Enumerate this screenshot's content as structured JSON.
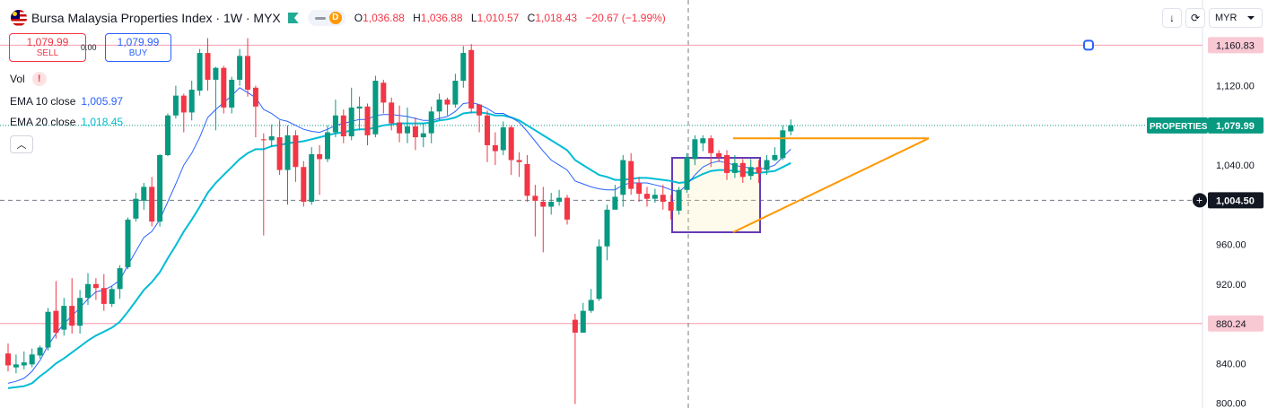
{
  "header": {
    "title": "Bursa Malaysia Properties Index · 1W · MYX",
    "ohlc": [
      {
        "k": "O",
        "v": "1,036.88"
      },
      {
        "k": "H",
        "v": "1,036.88"
      },
      {
        "k": "L",
        "v": "1,010.57"
      },
      {
        "k": "C",
        "v": "1,018.43"
      },
      {
        "k": "",
        "v": "−20.67 (−1.99%)"
      }
    ],
    "pill_letter": "D"
  },
  "trade": {
    "sell_price": "1,079.99",
    "sell_label": "SELL",
    "spread": "0.00",
    "buy_price": "1,079.99",
    "buy_label": "BUY"
  },
  "legend": {
    "vol": "Vol",
    "ema10_label": "EMA 10 close",
    "ema10_value": "1,005.97",
    "ema20_label": "EMA 20 close",
    "ema20_value": "1,018.45"
  },
  "toolbar": {
    "currency": "MYR"
  },
  "colors": {
    "up": "#089981",
    "down": "#f23645",
    "ema10": "#2962ff",
    "ema20": "#00bcd4",
    "pattern": "#ff9800",
    "box": "#673ab7",
    "level": "#f7a9b7"
  },
  "chart_data": {
    "type": "candlestick",
    "y_axis": {
      "range": [
        797,
        1180
      ],
      "ticks": [
        "1,120.00",
        "1,080.00",
        "1,040.00",
        "960.00",
        "920.00",
        "880.00",
        "840.00",
        "800.00"
      ]
    },
    "price_labels": {
      "upper_level": "1,160.83",
      "lower_level": "880.24",
      "symbol": "PROPERTIES",
      "last": "1,079.99",
      "crosshair": "1,004.50"
    },
    "levels": [
      1160.83,
      880.24
    ],
    "last_price": 1079.99,
    "crosshair_price": 1004.5,
    "candles": [
      [
        850,
        838,
        860,
        832
      ],
      [
        836,
        839,
        849,
        830
      ],
      [
        838,
        841,
        852,
        834
      ],
      [
        839,
        849,
        855,
        836
      ],
      [
        848,
        856,
        858,
        845
      ],
      [
        856,
        892,
        896,
        853
      ],
      [
        893,
        871,
        923,
        865
      ],
      [
        874,
        898,
        906,
        868
      ],
      [
        898,
        878,
        926,
        870
      ],
      [
        878,
        906,
        914,
        870
      ],
      [
        906,
        920,
        931,
        899
      ],
      [
        920,
        916,
        926,
        904
      ],
      [
        916,
        900,
        930,
        893
      ],
      [
        900,
        915,
        918,
        897
      ],
      [
        915,
        936,
        939,
        905
      ],
      [
        937,
        985,
        987,
        935
      ],
      [
        986,
        1006,
        1012,
        983
      ],
      [
        1004,
        1018,
        1022,
        995
      ],
      [
        1018,
        983,
        1028,
        978
      ],
      [
        983,
        1050,
        1051,
        978
      ],
      [
        1050,
        1090,
        1092,
        1049
      ],
      [
        1090,
        1110,
        1120,
        1087
      ],
      [
        1110,
        1093,
        1112,
        1073
      ],
      [
        1093,
        1116,
        1125,
        1085
      ],
      [
        1115,
        1153,
        1157,
        1110
      ],
      [
        1153,
        1126,
        1168,
        1115
      ],
      [
        1126,
        1138,
        1139,
        1075
      ],
      [
        1138,
        1098,
        1140,
        1092
      ],
      [
        1098,
        1126,
        1129,
        1092
      ],
      [
        1126,
        1150,
        1157,
        1120
      ],
      [
        1150,
        1116,
        1168,
        1109
      ],
      [
        1118,
        1099,
        1120,
        1068
      ],
      [
        1066,
        1065,
        1072,
        969
      ],
      [
        1065,
        1069,
        1081,
        1058
      ],
      [
        1068,
        1035,
        1085,
        1030
      ],
      [
        1035,
        1070,
        1080,
        1000
      ],
      [
        1070,
        1038,
        1075,
        1023
      ],
      [
        1038,
        1003,
        1044,
        998
      ],
      [
        1003,
        1051,
        1058,
        1000
      ],
      [
        1051,
        1046,
        1060,
        1010
      ],
      [
        1046,
        1073,
        1080,
        1043
      ],
      [
        1073,
        1090,
        1106,
        1068
      ],
      [
        1090,
        1069,
        1096,
        1062
      ],
      [
        1069,
        1098,
        1118,
        1065
      ],
      [
        1097,
        1099,
        1109,
        1075
      ],
      [
        1099,
        1070,
        1102,
        1060
      ],
      [
        1071,
        1125,
        1130,
        1068
      ],
      [
        1123,
        1103,
        1126,
        1092
      ],
      [
        1103,
        1082,
        1108,
        1075
      ],
      [
        1083,
        1072,
        1100,
        1063
      ],
      [
        1072,
        1079,
        1098,
        1062
      ],
      [
        1079,
        1068,
        1088,
        1055
      ],
      [
        1068,
        1072,
        1082,
        1058
      ],
      [
        1072,
        1094,
        1099,
        1062
      ],
      [
        1094,
        1106,
        1112,
        1085
      ],
      [
        1106,
        1101,
        1108,
        1090
      ],
      [
        1101,
        1125,
        1132,
        1098
      ],
      [
        1125,
        1153,
        1160,
        1118
      ],
      [
        1156,
        1097,
        1162,
        1092
      ],
      [
        1101,
        1090,
        1101,
        1073
      ],
      [
        1090,
        1060,
        1095,
        1043
      ],
      [
        1060,
        1054,
        1073,
        1040
      ],
      [
        1055,
        1078,
        1084,
        1050
      ],
      [
        1078,
        1045,
        1080,
        1030
      ],
      [
        1045,
        1043,
        1053,
        1028
      ],
      [
        1041,
        1009,
        1050,
        1003
      ],
      [
        1009,
        1004,
        1020,
        968
      ],
      [
        1003,
        998,
        1018,
        952
      ],
      [
        998,
        1003,
        1012,
        990
      ],
      [
        1003,
        1007,
        1015,
        999
      ],
      [
        1007,
        985,
        1010,
        980
      ],
      [
        884,
        871,
        890,
        799
      ],
      [
        871,
        893,
        901,
        871
      ],
      [
        893,
        904,
        915,
        891
      ],
      [
        905,
        958,
        965,
        903
      ],
      [
        958,
        995,
        1000,
        944
      ],
      [
        995,
        1008,
        1020,
        997
      ],
      [
        1010,
        1045,
        1050,
        998
      ],
      [
        1044,
        1016,
        1052,
        1010
      ],
      [
        1022,
        1011,
        1028,
        1003
      ],
      [
        1011,
        1006,
        1018,
        998
      ],
      [
        1006,
        1010,
        1016,
        1002
      ],
      [
        1010,
        1003,
        1020,
        995
      ],
      [
        1003,
        994,
        1010,
        985
      ],
      [
        994,
        1015,
        1018,
        990
      ],
      [
        1015,
        1048,
        1052,
        1012
      ],
      [
        1046,
        1066,
        1070,
        1040
      ],
      [
        1062,
        1067,
        1070,
        1054
      ],
      [
        1067,
        1052,
        1070,
        1038
      ],
      [
        1052,
        1048,
        1055,
        1043
      ],
      [
        1050,
        1032,
        1055,
        1025
      ],
      [
        1032,
        1042,
        1050,
        1027
      ],
      [
        1042,
        1028,
        1046,
        1022
      ],
      [
        1029,
        1038,
        1046,
        1025
      ],
      [
        1038,
        1032,
        1045,
        1022
      ],
      [
        1035,
        1045,
        1050,
        1030
      ],
      [
        1045,
        1050,
        1058,
        1044
      ],
      [
        1047,
        1075,
        1080,
        1045
      ],
      [
        1074,
        1079.99,
        1086,
        1070
      ]
    ],
    "ema10": [
      820,
      822,
      825,
      832,
      843,
      858,
      870,
      880,
      888,
      896,
      905,
      912,
      914,
      918,
      924,
      939,
      953,
      967,
      973,
      985,
      1003,
      1021,
      1040,
      1052,
      1068,
      1088,
      1096,
      1103,
      1110,
      1118,
      1113,
      1108,
      1096,
      1092,
      1086,
      1084,
      1080,
      1076,
      1074,
      1073,
      1076,
      1080,
      1082,
      1084,
      1086,
      1086,
      1090,
      1091,
      1091,
      1090,
      1089,
      1087,
      1085,
      1085,
      1087,
      1089,
      1094,
      1102,
      1103,
      1101,
      1097,
      1092,
      1092,
      1088,
      1083,
      1074,
      1064,
      1054,
      1045,
      1040,
      1035,
      1024,
      1021,
      1018,
      1016,
      1015,
      1015,
      1020,
      1022,
      1022,
      1022,
      1020,
      1018,
      1015,
      1013,
      1020,
      1030,
      1038,
      1042,
      1044,
      1042,
      1040,
      1038,
      1037,
      1036,
      1037,
      1040,
      1048,
      1056
    ],
    "ema20": [
      815,
      816,
      817,
      820,
      827,
      833,
      840,
      845,
      851,
      857,
      863,
      868,
      872,
      876,
      882,
      892,
      903,
      914,
      922,
      932,
      946,
      959,
      973,
      985,
      998,
      1012,
      1022,
      1030,
      1038,
      1046,
      1052,
      1056,
      1056,
      1059,
      1060,
      1062,
      1063,
      1064,
      1066,
      1068,
      1070,
      1072,
      1073,
      1075,
      1076,
      1076,
      1078,
      1080,
      1081,
      1082,
      1082,
      1082,
      1082,
      1083,
      1085,
      1086,
      1088,
      1092,
      1093,
      1093,
      1092,
      1090,
      1090,
      1088,
      1085,
      1080,
      1075,
      1070,
      1065,
      1060,
      1055,
      1045,
      1040,
      1035,
      1030,
      1028,
      1025,
      1025,
      1026,
      1027,
      1027,
      1026,
      1025,
      1024,
      1022,
      1023,
      1027,
      1031,
      1034,
      1035,
      1035,
      1034,
      1033,
      1032,
      1032,
      1033,
      1034,
      1038,
      1042
    ]
  }
}
